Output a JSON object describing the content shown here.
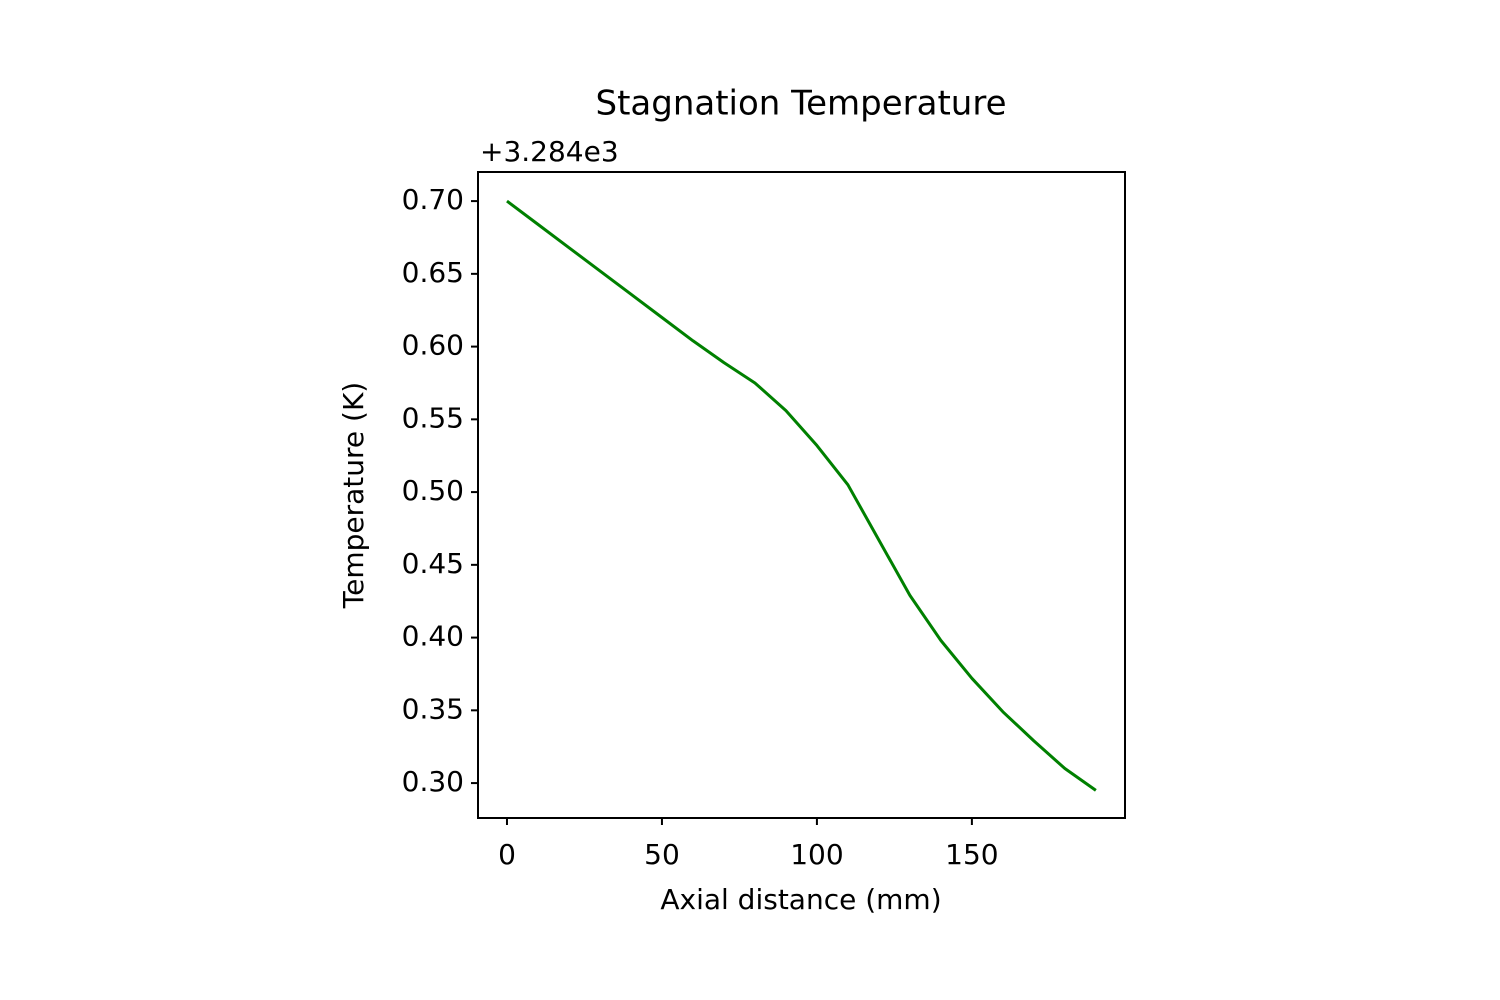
{
  "chart_data": {
    "type": "line",
    "title": "Stagnation Temperature",
    "x_label": "Axial distance (mm)",
    "y_label": "Temperature (K)",
    "y_offset_label": "+3.284e3",
    "x": [
      0,
      10,
      20,
      30,
      40,
      50,
      60,
      70,
      80,
      90,
      100,
      110,
      120,
      130,
      140,
      150,
      160,
      170,
      180,
      190
    ],
    "series": [
      {
        "name": "Stagnation Temperature",
        "color": "#008000",
        "values": [
          0.7,
          0.684,
          0.668,
          0.652,
          0.636,
          0.62,
          0.604,
          0.589,
          0.575,
          0.556,
          0.532,
          0.505,
          0.467,
          0.429,
          0.398,
          0.372,
          0.349,
          0.329,
          0.31,
          0.295
        ]
      }
    ],
    "xlim": [
      -9.35,
      199.4
    ],
    "ylim": [
      0.276,
      0.72
    ],
    "xticks": [
      0,
      50,
      100,
      150
    ],
    "yticks": [
      {
        "value": 0.3,
        "label": "0.30"
      },
      {
        "value": 0.35,
        "label": "0.35"
      },
      {
        "value": 0.4,
        "label": "0.40"
      },
      {
        "value": 0.45,
        "label": "0.45"
      },
      {
        "value": 0.5,
        "label": "0.50"
      },
      {
        "value": 0.55,
        "label": "0.55"
      },
      {
        "value": 0.6,
        "label": "0.60"
      },
      {
        "value": 0.65,
        "label": "0.65"
      },
      {
        "value": 0.7,
        "label": "0.70"
      }
    ],
    "grid": false
  }
}
